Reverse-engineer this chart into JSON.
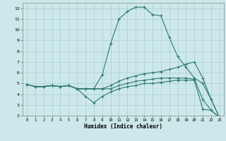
{
  "xlabel": "Humidex (Indice chaleur)",
  "xlim": [
    -0.5,
    23.5
  ],
  "ylim": [
    2,
    12.5
  ],
  "xticks": [
    0,
    1,
    2,
    3,
    4,
    5,
    6,
    7,
    8,
    9,
    10,
    11,
    12,
    13,
    14,
    15,
    16,
    17,
    18,
    19,
    20,
    21,
    22,
    23
  ],
  "yticks": [
    2,
    3,
    4,
    5,
    6,
    7,
    8,
    9,
    10,
    11,
    12
  ],
  "background_color": "#cde8ea",
  "grid_color": "#aacdd0",
  "line_color": "#2d7a72",
  "line1_y": [
    4.9,
    4.7,
    4.7,
    4.8,
    4.7,
    4.8,
    4.5,
    4.5,
    4.5,
    5.8,
    8.7,
    11.0,
    11.7,
    12.1,
    12.1,
    11.4,
    11.3,
    9.3,
    7.5,
    6.5,
    5.5,
    5.0,
    3.5,
    1.8
  ],
  "line2_y": [
    4.9,
    4.7,
    4.7,
    4.8,
    4.7,
    4.8,
    4.5,
    4.5,
    4.5,
    4.5,
    4.8,
    5.2,
    5.5,
    5.7,
    5.9,
    6.0,
    6.1,
    6.3,
    6.5,
    6.8,
    7.0,
    5.5,
    3.5,
    1.8
  ],
  "line3_y": [
    4.9,
    4.7,
    4.7,
    4.8,
    4.7,
    4.8,
    4.5,
    3.8,
    3.2,
    3.8,
    4.2,
    4.5,
    4.7,
    4.8,
    5.0,
    5.0,
    5.1,
    5.2,
    5.3,
    5.3,
    5.3,
    2.6,
    2.5,
    1.8
  ],
  "line4_y": [
    4.9,
    4.7,
    4.7,
    4.8,
    4.7,
    4.8,
    4.5,
    4.5,
    4.5,
    4.5,
    4.5,
    4.8,
    5.0,
    5.2,
    5.3,
    5.4,
    5.5,
    5.5,
    5.5,
    5.5,
    5.4,
    3.5,
    2.5,
    1.8
  ]
}
